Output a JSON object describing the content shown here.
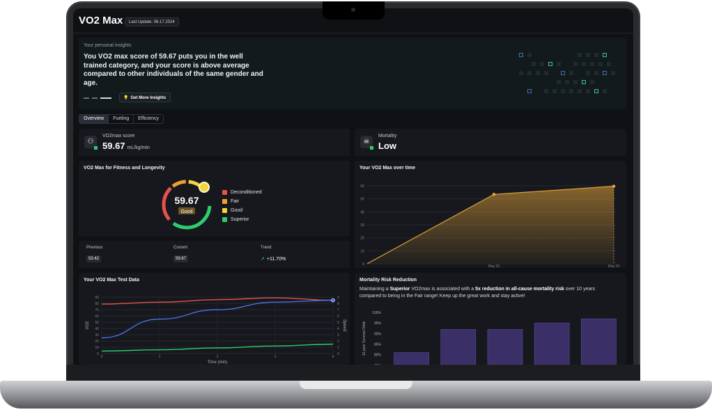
{
  "app": {
    "title": "VO2 Max",
    "last_update": "Last Update: 08.17.2024"
  },
  "insights": {
    "label": "Your personal insights",
    "text": "You VO2 max score of 59.67 puts you in the well trained category, and your score is above average compared to other individuals of the same gender and age.",
    "button_label": "Get More Insights"
  },
  "tabs": [
    {
      "label": "Overview",
      "active": true
    },
    {
      "label": "Fueling",
      "active": false
    },
    {
      "label": "Efficiency",
      "active": false
    }
  ],
  "vo2_card": {
    "label": "VO2max score",
    "value": "59.67",
    "unit": "mL/kg/min",
    "icon": "lungs-icon"
  },
  "mortality_card": {
    "label": "Mortality",
    "value": "Low",
    "icon": "skull-icon"
  },
  "fitness": {
    "title": "VO2 Max for Fitness and Longevity",
    "value": "59.67",
    "category": "Good",
    "legend": [
      {
        "label": "Deconditioned",
        "color": "#e5534b"
      },
      {
        "label": "Fair",
        "color": "#f0a030"
      },
      {
        "label": "Good",
        "color": "#f2d53c"
      },
      {
        "label": "Superior",
        "color": "#2ecc71"
      }
    ]
  },
  "stats": {
    "previous_label": "Previous",
    "previous_value": "53.42",
    "current_label": "Current",
    "current_value": "59.67",
    "trend_label": "Trend",
    "trend_value": "+11.70%"
  },
  "over_time": {
    "title": "Your VO2 Max over time"
  },
  "test_data": {
    "title": "Your VO2 Max Test Data"
  },
  "mortality_risk": {
    "title": "Mortality Risk Reduction",
    "text_1": "Maintaining a ",
    "text_bold_1": "Superior",
    "text_2": " VO2max is associated with a ",
    "text_bold_2": "5x reduction in all-cause mortality risk",
    "text_3": " over 10 years compared to being in the Fair range! Keep up the great work and stay active!"
  },
  "chart_data": [
    {
      "type": "area",
      "title": "Your VO2 Max over time",
      "x": [
        "",
        "May 23",
        "May 24"
      ],
      "series": [
        {
          "values": [
            0,
            53.42,
            59.67
          ]
        }
      ],
      "ylim": [
        0,
        60
      ],
      "yticks": [
        0,
        10,
        20,
        30,
        40,
        50,
        60
      ],
      "tick_labels_x": [
        "May 23",
        "May 24"
      ],
      "color": "#e2a33a"
    },
    {
      "type": "line",
      "title": "Your VO2 Max Test Data",
      "xlabel": "Time (min)",
      "ylabel": "VO2",
      "y2label": "Speed",
      "x": [
        0,
        1,
        2,
        3,
        4
      ],
      "ylim": [
        0,
        90
      ],
      "yticks": [
        0,
        10,
        20,
        30,
        40,
        50,
        60,
        70,
        80,
        90
      ],
      "y2ticks": [
        0,
        1,
        2,
        3,
        4,
        5,
        6,
        7,
        8,
        9
      ],
      "series": [
        {
          "color": "#e5534b",
          "values": [
            79,
            82,
            86,
            89,
            85
          ]
        },
        {
          "color": "#4d6fe0",
          "values": [
            25,
            55,
            70,
            82,
            85
          ]
        },
        {
          "color": "#2ecc71",
          "values": [
            4,
            6,
            9,
            12,
            15
          ]
        }
      ]
    },
    {
      "type": "bar",
      "title": "Mortality Risk Reduction",
      "ylabel": "10-year Survival Odds",
      "yticks": [
        "70%",
        "75%",
        "80%",
        "85%",
        "90%",
        "95%",
        "100%"
      ],
      "ylim": [
        70,
        100
      ],
      "values": [
        81,
        92,
        92,
        95,
        97
      ],
      "color": "#3a2f66"
    }
  ]
}
